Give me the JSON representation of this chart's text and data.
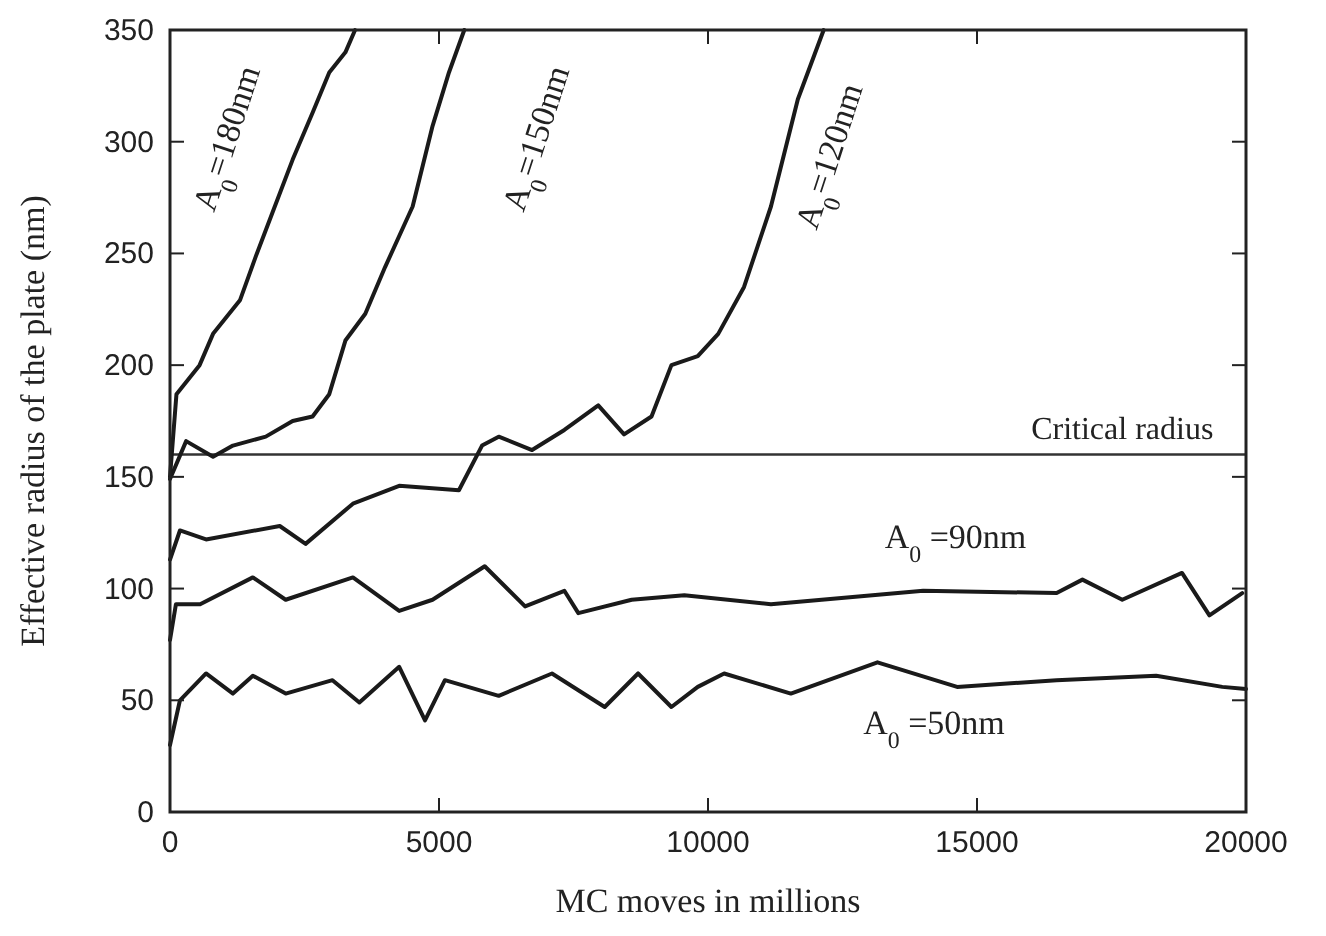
{
  "chart_data": {
    "type": "line",
    "xlabel": "MC moves in millions",
    "ylabel": "Effective radius of the plate (nm)",
    "xlim": [
      0,
      20000
    ],
    "ylim": [
      0,
      350
    ],
    "xticks": [
      0,
      5000,
      10000,
      15000,
      20000
    ],
    "yticks": [
      0,
      50,
      100,
      150,
      200,
      250,
      300,
      350
    ],
    "grid": false,
    "marker": "none",
    "line_style": "solid",
    "ref_lines": [
      {
        "axis": "y",
        "value": 160,
        "label": "Critical radius",
        "color": "#333333"
      }
    ],
    "series": [
      {
        "name": "A$_{0}$=180nm",
        "color": "#1a1a1a",
        "x": [
          0,
          120,
          550,
          800,
          1300,
          1600,
          1900,
          2280,
          2650,
          2960,
          3260,
          3440
        ],
        "values": [
          150,
          187,
          200,
          214,
          229,
          249,
          268,
          292,
          313,
          331,
          340,
          350
        ]
      },
      {
        "name": "A$_{0}$=150nm",
        "color": "#1a1a1a",
        "x": [
          0,
          300,
          800,
          1170,
          1780,
          2280,
          2650,
          2960,
          3260,
          3630,
          4000,
          4510,
          4880,
          5185,
          5470
        ],
        "values": [
          149,
          166,
          159,
          164,
          168,
          175,
          177,
          187,
          211,
          223,
          244,
          271,
          307,
          331,
          350
        ]
      },
      {
        "name": "A$_{0}$=120nm",
        "color": "#1a1a1a",
        "x": [
          0,
          185,
          670,
          2040,
          2520,
          3400,
          4260,
          5370,
          5800,
          6110,
          6730,
          7330,
          7960,
          8440,
          8950,
          9320,
          9810,
          10190,
          10670,
          11170,
          11670,
          12150
        ],
        "values": [
          113,
          126,
          122,
          128,
          120,
          138,
          146,
          144,
          164,
          168,
          162,
          171,
          182,
          169,
          177,
          200,
          204,
          214,
          235,
          271,
          319,
          350
        ]
      },
      {
        "name": "A$_{0}$ =90nm",
        "color": "#1a1a1a",
        "x": [
          0,
          110,
          560,
          1540,
          2150,
          3400,
          4260,
          4880,
          5850,
          6600,
          7330,
          7590,
          8580,
          9560,
          11170,
          14000,
          16480,
          16960,
          17700,
          18810,
          19320,
          19930
        ],
        "values": [
          77,
          93,
          93,
          105,
          95,
          105,
          90,
          95,
          110,
          92,
          99,
          89,
          95,
          97,
          93,
          99,
          98,
          104,
          95,
          107,
          88,
          98
        ]
      },
      {
        "name": "A$_{0}$ =50nm",
        "color": "#1a1a1a",
        "x": [
          0,
          185,
          670,
          1170,
          1540,
          2150,
          3020,
          3520,
          4260,
          4740,
          5110,
          6110,
          7100,
          8080,
          8700,
          9320,
          9810,
          10300,
          11540,
          13150,
          14630,
          16480,
          18330,
          19560,
          20000
        ],
        "values": [
          30,
          50,
          62,
          53,
          61,
          53,
          59,
          49,
          65,
          41,
          59,
          52,
          62,
          47,
          62,
          47,
          56,
          62,
          53,
          67,
          56,
          59,
          61,
          56,
          55
        ]
      }
    ]
  }
}
